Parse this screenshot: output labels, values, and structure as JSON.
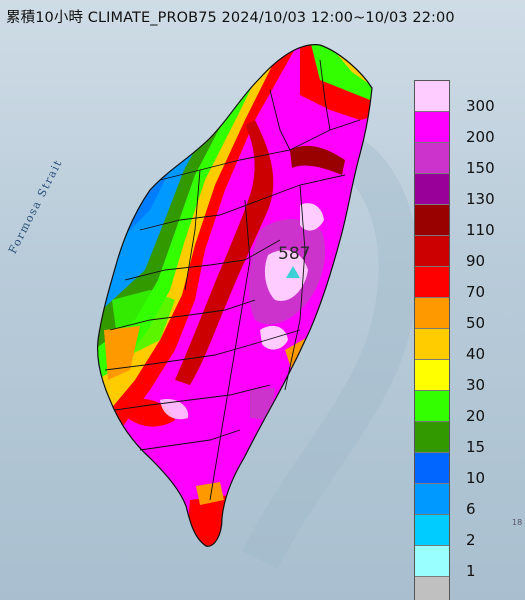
{
  "title": "累積10小時 CLIMATE_PROB75 2024/10/03 12:00~10/03 22:00",
  "strait_label": "Formosa Strait",
  "peak_value": "587",
  "edge_fragment": "18",
  "legend": {
    "labels": [
      "300",
      "200",
      "150",
      "130",
      "110",
      "90",
      "70",
      "50",
      "40",
      "30",
      "20",
      "15",
      "10",
      "6",
      "2",
      "1"
    ],
    "colors": [
      "#ffccff",
      "#ff00ff",
      "#cc33cc",
      "#990099",
      "#990000",
      "#cc0000",
      "#ff0000",
      "#ff9900",
      "#ffcc00",
      "#ffff00",
      "#33ff00",
      "#339900",
      "#0066ff",
      "#0099ff",
      "#00ccff",
      "#99ffff",
      "#c0c0c0"
    ]
  }
}
